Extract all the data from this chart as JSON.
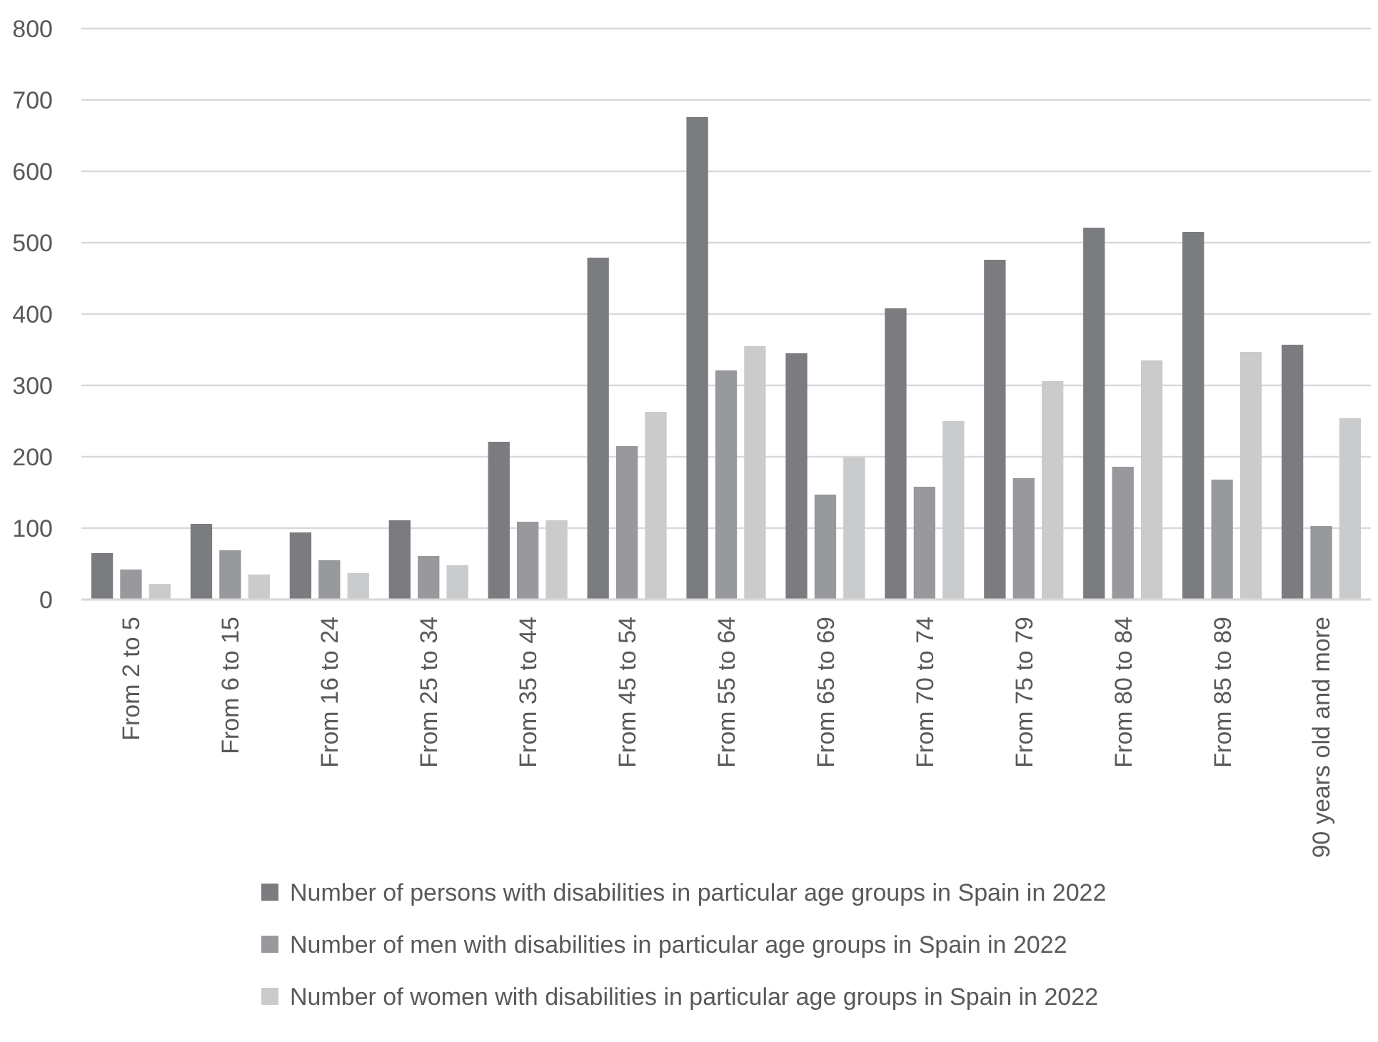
{
  "chart_data": {
    "type": "bar",
    "categories": [
      "From 2 to 5",
      "From 6 to 15",
      "From 16 to 24",
      "From 25 to 34",
      "From 35 to 44",
      "From 45 to 54",
      "From 55 to 64",
      "From 65 to 69",
      "From 70 to 74",
      "From 75 to 79",
      "From 80 to 84",
      "From 85 to 89",
      "90 years old and more"
    ],
    "series": [
      {
        "name": "Number of persons with disabilities in particular age groups in Spain in 2022",
        "color": "#7b7c80",
        "values": [
          65,
          106,
          94,
          111,
          221,
          479,
          676,
          345,
          408,
          476,
          521,
          515,
          357
        ]
      },
      {
        "name": "Number of men with disabilities in particular age groups in Spain in 2022",
        "color": "#98999c",
        "values": [
          42,
          69,
          55,
          61,
          109,
          215,
          321,
          147,
          158,
          170,
          186,
          168,
          103
        ]
      },
      {
        "name": "Number of women with disabilities in particular age groups in Spain in 2022",
        "color": "#cacbcc",
        "values": [
          22,
          35,
          37,
          48,
          111,
          263,
          355,
          199,
          250,
          306,
          335,
          347,
          254
        ]
      }
    ],
    "ylim": [
      0,
      800
    ],
    "yticks": [
      0,
      100,
      200,
      300,
      400,
      500,
      600,
      700,
      800
    ],
    "grid": "y",
    "legend": "bottom"
  }
}
